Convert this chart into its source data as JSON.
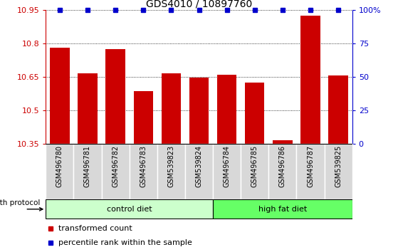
{
  "title": "GDS4010 / 10897760",
  "samples": [
    "GSM496780",
    "GSM496781",
    "GSM496782",
    "GSM496783",
    "GSM539823",
    "GSM539824",
    "GSM496784",
    "GSM496785",
    "GSM496786",
    "GSM496787",
    "GSM539825"
  ],
  "bar_values": [
    10.78,
    10.665,
    10.775,
    10.585,
    10.665,
    10.648,
    10.658,
    10.625,
    10.365,
    10.925,
    10.655
  ],
  "percentile_values": [
    100,
    100,
    100,
    100,
    100,
    100,
    100,
    100,
    100,
    100,
    100
  ],
  "bar_color": "#cc0000",
  "percentile_color": "#0000cc",
  "ylim_left": [
    10.35,
    10.95
  ],
  "yticks_left": [
    10.35,
    10.5,
    10.65,
    10.8,
    10.95
  ],
  "ytick_labels_left": [
    "10.35",
    "10.5",
    "10.65",
    "10.8",
    "10.95"
  ],
  "ylim_right": [
    0,
    100
  ],
  "yticks_right": [
    0,
    25,
    50,
    75,
    100
  ],
  "ytick_labels_right": [
    "0",
    "25",
    "50",
    "75",
    "100%"
  ],
  "grid_values": [
    10.5,
    10.65,
    10.8
  ],
  "control_diet_label": "control diet",
  "high_fat_diet_label": "high fat diet",
  "control_diet_indices": [
    0,
    1,
    2,
    3,
    4,
    5
  ],
  "high_fat_diet_indices": [
    6,
    7,
    8,
    9,
    10
  ],
  "growth_protocol_label": "growth protocol",
  "legend_bar_label": "transformed count",
  "legend_pct_label": "percentile rank within the sample",
  "control_fill": "#ccffcc",
  "high_fat_fill": "#66ff66",
  "sample_bg": "#d8d8d8",
  "bar_width": 0.7,
  "fig_width": 5.59,
  "fig_height": 3.54,
  "dpi": 100
}
